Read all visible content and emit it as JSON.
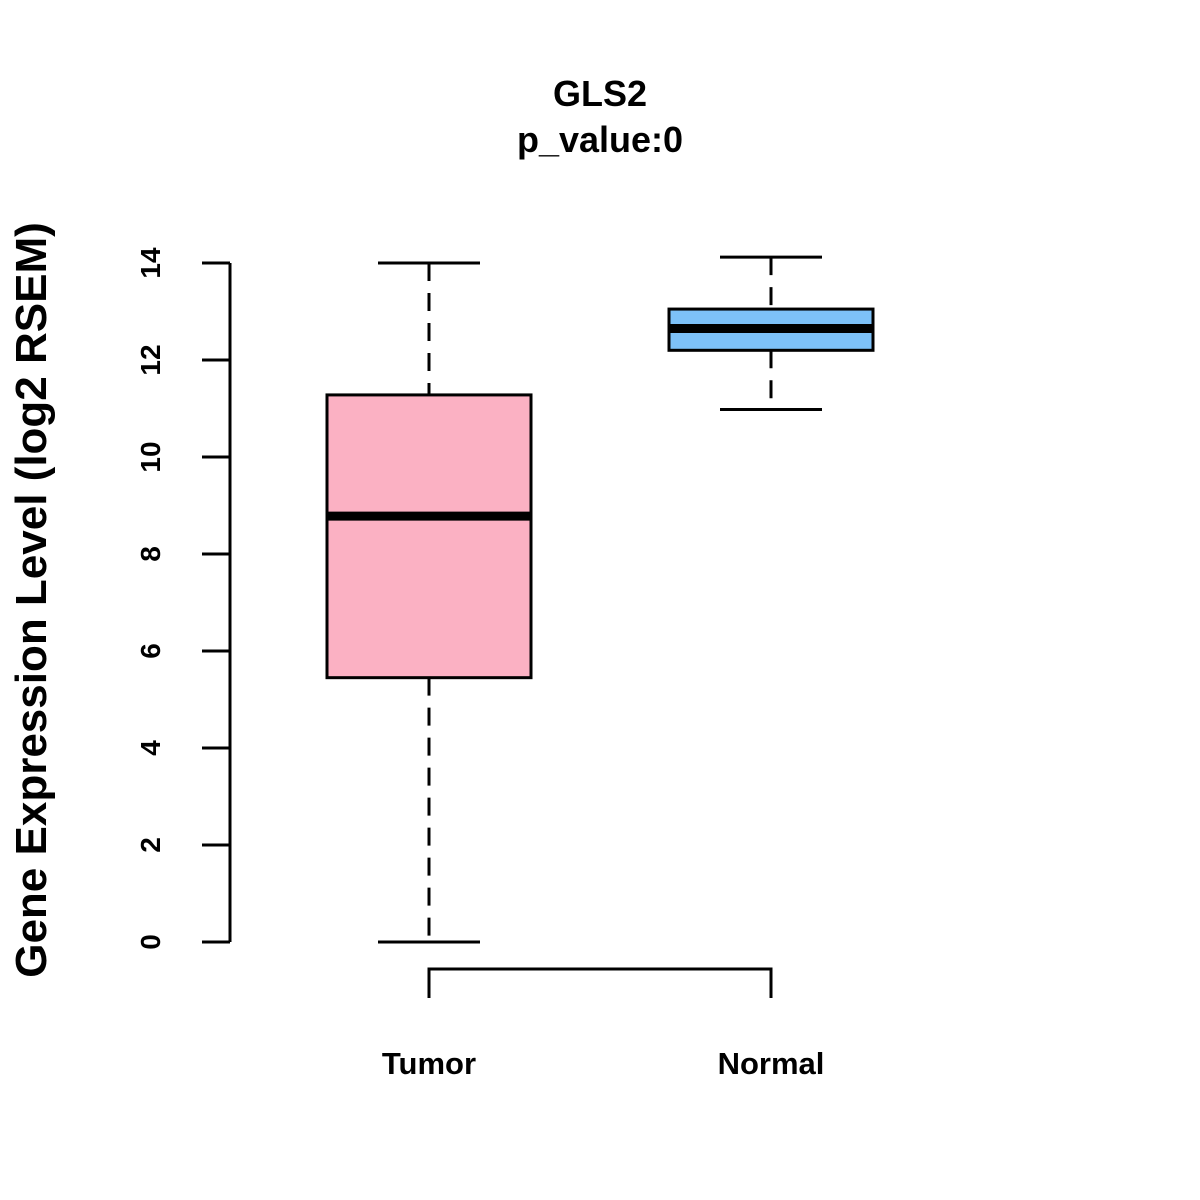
{
  "chart_data": {
    "type": "boxplot",
    "title": "GLS2",
    "subtitle": "p_value:0",
    "xlabel": "",
    "ylabel": "Gene Expression Level (log2 RSEM)",
    "ylim": [
      0,
      14
    ],
    "yticks": [
      0,
      2,
      4,
      6,
      8,
      10,
      12,
      14
    ],
    "grid": false,
    "categories": [
      "Tumor",
      "Normal"
    ],
    "series": [
      {
        "name": "Tumor",
        "color": "#FBB1C3",
        "whisker_low": 0,
        "q1": 5.45,
        "median": 8.78,
        "q3": 11.28,
        "whisker_high": 14.0
      },
      {
        "name": "Normal",
        "color": "#7DC1F8",
        "whisker_low": 10.98,
        "q1": 12.2,
        "median": 12.65,
        "q3": 13.05,
        "whisker_high": 14.12
      }
    ],
    "annotation": "comparison bracket between Tumor and Normal"
  }
}
